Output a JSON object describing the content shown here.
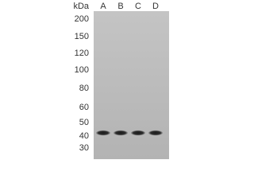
{
  "unit": "kDa",
  "lanes": [
    "A",
    "B",
    "C",
    "D"
  ],
  "markers": [
    "200",
    "150",
    "120",
    "100",
    "80",
    "60",
    "50",
    "40",
    "30"
  ]
}
